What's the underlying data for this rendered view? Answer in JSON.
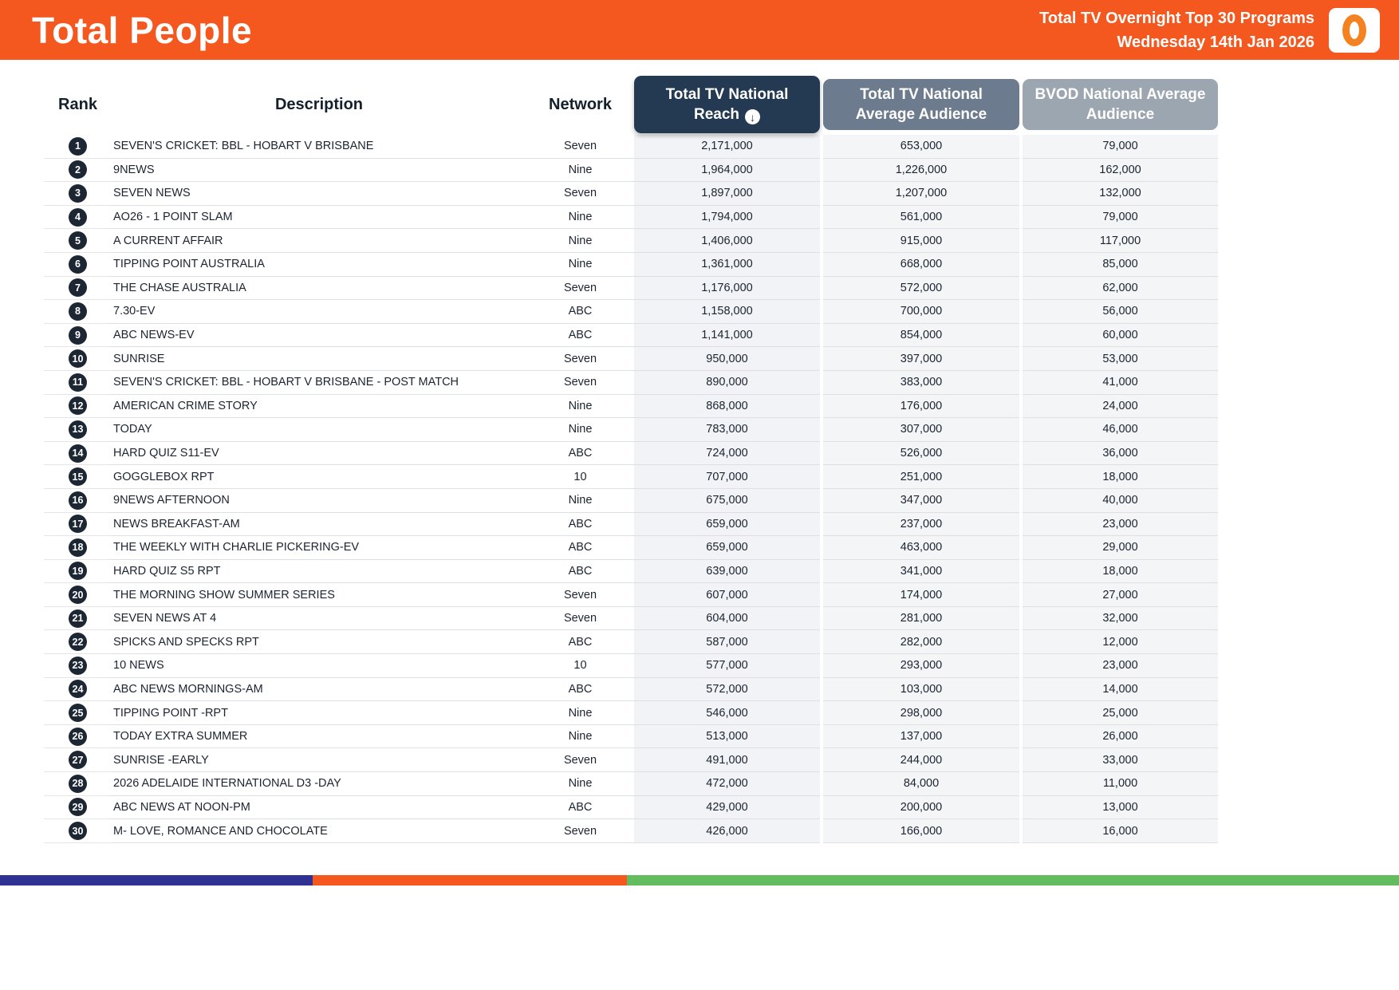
{
  "header": {
    "title": "Total People",
    "subtitle_line1": "Total TV Overnight Top 30 Programs",
    "subtitle_line2": "Wednesday 14th Jan 2026",
    "bg_color": "#f4581f",
    "logo": "oztam-zero-mark"
  },
  "table": {
    "columns": {
      "rank": "Rank",
      "description": "Description",
      "network": "Network",
      "reach": "Total TV National Reach",
      "avg": "Total TV National Average Audience",
      "bvod": "BVOD National Average Audience"
    },
    "sort_icon": "↓",
    "rows": [
      {
        "rank": "1",
        "description": "SEVEN'S CRICKET: BBL - HOBART V BRISBANE",
        "network": "Seven",
        "reach": "2,171,000",
        "avg": "653,000",
        "bvod": "79,000"
      },
      {
        "rank": "2",
        "description": "9NEWS",
        "network": "Nine",
        "reach": "1,964,000",
        "avg": "1,226,000",
        "bvod": "162,000"
      },
      {
        "rank": "3",
        "description": "SEVEN NEWS",
        "network": "Seven",
        "reach": "1,897,000",
        "avg": "1,207,000",
        "bvod": "132,000"
      },
      {
        "rank": "4",
        "description": "AO26 - 1 POINT SLAM",
        "network": "Nine",
        "reach": "1,794,000",
        "avg": "561,000",
        "bvod": "79,000"
      },
      {
        "rank": "5",
        "description": "A CURRENT AFFAIR",
        "network": "Nine",
        "reach": "1,406,000",
        "avg": "915,000",
        "bvod": "117,000"
      },
      {
        "rank": "6",
        "description": "TIPPING POINT AUSTRALIA",
        "network": "Nine",
        "reach": "1,361,000",
        "avg": "668,000",
        "bvod": "85,000"
      },
      {
        "rank": "7",
        "description": "THE CHASE AUSTRALIA",
        "network": "Seven",
        "reach": "1,176,000",
        "avg": "572,000",
        "bvod": "62,000"
      },
      {
        "rank": "8",
        "description": "7.30-EV",
        "network": "ABC",
        "reach": "1,158,000",
        "avg": "700,000",
        "bvod": "56,000"
      },
      {
        "rank": "9",
        "description": "ABC NEWS-EV",
        "network": "ABC",
        "reach": "1,141,000",
        "avg": "854,000",
        "bvod": "60,000"
      },
      {
        "rank": "10",
        "description": "SUNRISE",
        "network": "Seven",
        "reach": "950,000",
        "avg": "397,000",
        "bvod": "53,000"
      },
      {
        "rank": "11",
        "description": "SEVEN'S CRICKET: BBL - HOBART V BRISBANE - POST MATCH",
        "network": "Seven",
        "reach": "890,000",
        "avg": "383,000",
        "bvod": "41,000"
      },
      {
        "rank": "12",
        "description": "AMERICAN CRIME STORY",
        "network": "Nine",
        "reach": "868,000",
        "avg": "176,000",
        "bvod": "24,000"
      },
      {
        "rank": "13",
        "description": "TODAY",
        "network": "Nine",
        "reach": "783,000",
        "avg": "307,000",
        "bvod": "46,000"
      },
      {
        "rank": "14",
        "description": "HARD QUIZ S11-EV",
        "network": "ABC",
        "reach": "724,000",
        "avg": "526,000",
        "bvod": "36,000"
      },
      {
        "rank": "15",
        "description": "GOGGLEBOX RPT",
        "network": "10",
        "reach": "707,000",
        "avg": "251,000",
        "bvod": "18,000"
      },
      {
        "rank": "16",
        "description": "9NEWS AFTERNOON",
        "network": "Nine",
        "reach": "675,000",
        "avg": "347,000",
        "bvod": "40,000"
      },
      {
        "rank": "17",
        "description": "NEWS BREAKFAST-AM",
        "network": "ABC",
        "reach": "659,000",
        "avg": "237,000",
        "bvod": "23,000"
      },
      {
        "rank": "18",
        "description": "THE WEEKLY WITH CHARLIE PICKERING-EV",
        "network": "ABC",
        "reach": "659,000",
        "avg": "463,000",
        "bvod": "29,000"
      },
      {
        "rank": "19",
        "description": "HARD QUIZ S5 RPT",
        "network": "ABC",
        "reach": "639,000",
        "avg": "341,000",
        "bvod": "18,000"
      },
      {
        "rank": "20",
        "description": "THE MORNING SHOW SUMMER SERIES",
        "network": "Seven",
        "reach": "607,000",
        "avg": "174,000",
        "bvod": "27,000"
      },
      {
        "rank": "21",
        "description": "SEVEN NEWS AT 4",
        "network": "Seven",
        "reach": "604,000",
        "avg": "281,000",
        "bvod": "32,000"
      },
      {
        "rank": "22",
        "description": "SPICKS AND SPECKS RPT",
        "network": "ABC",
        "reach": "587,000",
        "avg": "282,000",
        "bvod": "12,000"
      },
      {
        "rank": "23",
        "description": "10 NEWS",
        "network": "10",
        "reach": "577,000",
        "avg": "293,000",
        "bvod": "23,000"
      },
      {
        "rank": "24",
        "description": "ABC NEWS MORNINGS-AM",
        "network": "ABC",
        "reach": "572,000",
        "avg": "103,000",
        "bvod": "14,000"
      },
      {
        "rank": "25",
        "description": "TIPPING POINT -RPT",
        "network": "Nine",
        "reach": "546,000",
        "avg": "298,000",
        "bvod": "25,000"
      },
      {
        "rank": "26",
        "description": "TODAY EXTRA SUMMER",
        "network": "Nine",
        "reach": "513,000",
        "avg": "137,000",
        "bvod": "26,000"
      },
      {
        "rank": "27",
        "description": "SUNRISE -EARLY",
        "network": "Seven",
        "reach": "491,000",
        "avg": "244,000",
        "bvod": "33,000"
      },
      {
        "rank": "28",
        "description": "2026 ADELAIDE INTERNATIONAL D3 -DAY",
        "network": "Nine",
        "reach": "472,000",
        "avg": "84,000",
        "bvod": "11,000"
      },
      {
        "rank": "29",
        "description": "ABC NEWS AT NOON-PM",
        "network": "ABC",
        "reach": "429,000",
        "avg": "200,000",
        "bvod": "13,000"
      },
      {
        "rank": "30",
        "description": "M- LOVE, ROMANCE AND CHOCOLATE",
        "network": "Seven",
        "reach": "426,000",
        "avg": "166,000",
        "bvod": "16,000"
      }
    ]
  },
  "footer": {
    "segment_colors": [
      "#2f3193",
      "#f4581f",
      "#63bd5f"
    ]
  }
}
